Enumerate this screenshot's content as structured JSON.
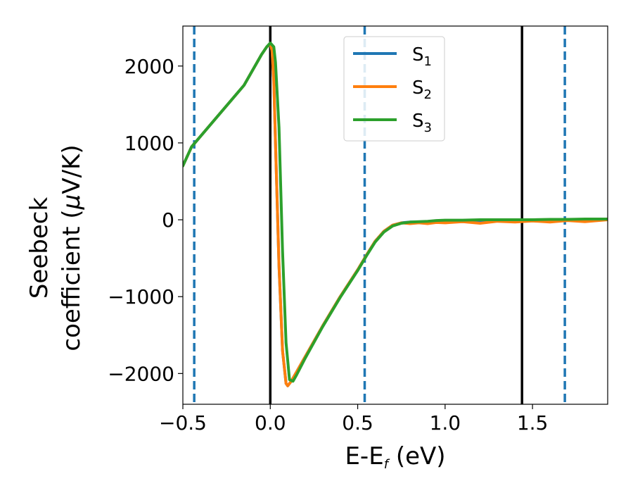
{
  "chart_data": {
    "type": "line",
    "xlabel": "E-E",
    "xlabel_sub": "f",
    "xlabel_unit": " (eV)",
    "ylabel_line1": "Seebeck",
    "ylabel_line2": "coefficient  (",
    "ylabel_mu": "μ",
    "ylabel_unit": "V/K)",
    "xlim": [
      -0.5,
      1.93
    ],
    "ylim": [
      -2400,
      2520
    ],
    "x_ticks": [
      -0.5,
      0.0,
      0.5,
      1.0,
      1.5
    ],
    "x_tick_labels": [
      "−0.5",
      "0.0",
      "0.5",
      "1.0",
      "1.5"
    ],
    "y_ticks": [
      -2000,
      -1000,
      0,
      1000,
      2000
    ],
    "y_tick_labels": [
      "−2000",
      "−1000",
      "0",
      "1000",
      "2000"
    ],
    "grid": false,
    "legend_position": "top-center",
    "series": [
      {
        "name": "S",
        "sub": "1",
        "color": "#1f77b4",
        "x": [
          -0.5,
          -0.45,
          -0.3,
          -0.15,
          -0.05,
          -0.02,
          0.0,
          0.01,
          0.02,
          0.03,
          0.05,
          0.07,
          0.09,
          0.1,
          0.12,
          0.15,
          0.2,
          0.3,
          0.4,
          0.5,
          0.55,
          0.6,
          0.65,
          0.7,
          0.75,
          0.8,
          0.85,
          0.9,
          0.95,
          1.0,
          1.1,
          1.2,
          1.3,
          1.4,
          1.5,
          1.6,
          1.7,
          1.8,
          1.93
        ],
        "y": [
          700,
          950,
          1350,
          1750,
          2150,
          2250,
          2290,
          2200,
          1800,
          1000,
          -600,
          -1700,
          -2130,
          -2160,
          -2100,
          -1980,
          -1780,
          -1380,
          -1000,
          -650,
          -460,
          -280,
          -150,
          -70,
          -40,
          -30,
          -30,
          -30,
          -25,
          -20,
          -25,
          -20,
          -15,
          -10,
          -10,
          -5,
          -5,
          0,
          0
        ]
      },
      {
        "name": "S",
        "sub": "2",
        "color": "#ff7f0e",
        "x": [
          -0.5,
          -0.45,
          -0.3,
          -0.15,
          -0.05,
          -0.02,
          0.0,
          0.01,
          0.02,
          0.03,
          0.05,
          0.07,
          0.09,
          0.1,
          0.12,
          0.15,
          0.2,
          0.3,
          0.4,
          0.5,
          0.55,
          0.6,
          0.65,
          0.7,
          0.75,
          0.8,
          0.85,
          0.9,
          0.95,
          1.0,
          1.1,
          1.2,
          1.3,
          1.4,
          1.5,
          1.6,
          1.7,
          1.8,
          1.93
        ],
        "y": [
          700,
          950,
          1350,
          1750,
          2150,
          2250,
          2290,
          2200,
          1800,
          1000,
          -600,
          -1700,
          -2130,
          -2160,
          -2100,
          -1980,
          -1780,
          -1380,
          -1000,
          -650,
          -460,
          -280,
          -150,
          -70,
          -40,
          -50,
          -40,
          -50,
          -35,
          -40,
          -25,
          -45,
          -20,
          -30,
          -15,
          -30,
          -10,
          -25,
          0
        ]
      },
      {
        "name": "S",
        "sub": "3",
        "color": "#2ca02c",
        "x": [
          -0.5,
          -0.45,
          -0.3,
          -0.15,
          -0.05,
          -0.02,
          0.0,
          0.02,
          0.03,
          0.05,
          0.07,
          0.09,
          0.11,
          0.13,
          0.15,
          0.2,
          0.3,
          0.4,
          0.5,
          0.55,
          0.6,
          0.65,
          0.7,
          0.75,
          0.8,
          0.85,
          0.9,
          0.95,
          1.0,
          1.1,
          1.2,
          1.3,
          1.4,
          1.5,
          1.6,
          1.7,
          1.8,
          1.93
        ],
        "y": [
          700,
          950,
          1350,
          1750,
          2150,
          2250,
          2300,
          2250,
          2050,
          1200,
          -400,
          -1600,
          -2080,
          -2100,
          -2020,
          -1800,
          -1390,
          -1010,
          -660,
          -470,
          -290,
          -160,
          -80,
          -45,
          -30,
          -25,
          -20,
          -10,
          -5,
          -5,
          0,
          0,
          0,
          0,
          5,
          5,
          10,
          10
        ]
      }
    ],
    "vlines": [
      {
        "x": -0.435,
        "style": "dashed",
        "color": "#1f77b4"
      },
      {
        "x": 0.0,
        "style": "solid",
        "color": "#000000"
      },
      {
        "x": 0.54,
        "style": "dashed",
        "color": "#1f77b4"
      },
      {
        "x": 1.44,
        "style": "solid",
        "color": "#000000"
      },
      {
        "x": 1.685,
        "style": "dashed",
        "color": "#1f77b4"
      }
    ]
  }
}
